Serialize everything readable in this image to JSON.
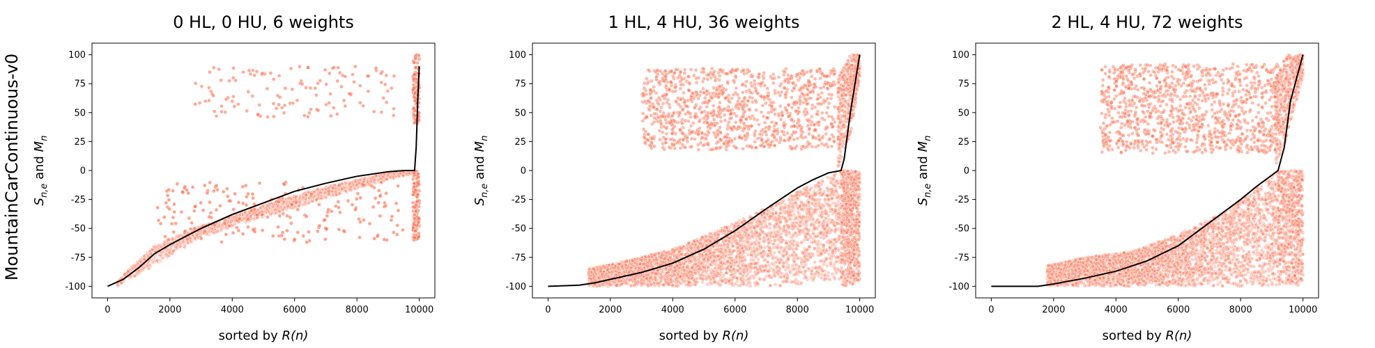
{
  "figure": {
    "row_label": "MountainCarContinuous-v0",
    "colors": {
      "scatter": "#fb6a4a",
      "line": "#000000",
      "axis": "#000000"
    }
  },
  "chart_data": [
    {
      "type": "scatter",
      "title": "0 HL, 0 HU, 6 weights",
      "xlabel_prefix": "sorted by ",
      "xlabel_var": "R(n)",
      "ylabel": "S_{n,e} and M_n",
      "xlim": [
        -500,
        10500
      ],
      "ylim": [
        -110,
        110
      ],
      "xticks": [
        0,
        2000,
        4000,
        6000,
        8000,
        10000
      ],
      "yticks": [
        -100,
        -75,
        -50,
        -25,
        0,
        25,
        50,
        75,
        100
      ],
      "mean_line": {
        "x": [
          0,
          500,
          1000,
          1500,
          2000,
          3000,
          4000,
          5000,
          6000,
          7000,
          8000,
          9000,
          9500,
          9850,
          9900,
          9950,
          10000
        ],
        "y": [
          -100,
          -94,
          -84,
          -72,
          -64,
          -50,
          -38,
          -28,
          -18,
          -11,
          -5,
          -1,
          0,
          0,
          20,
          60,
          90
        ]
      },
      "bands": [
        {
          "x": [
            300,
            1500,
            3000,
            5000,
            7000,
            9000,
            9900
          ],
          "lo": [
            -100,
            -82,
            -58,
            -40,
            -24,
            -8,
            -2
          ],
          "hi": [
            -95,
            -65,
            -48,
            -30,
            -14,
            -2,
            0
          ],
          "n": 1600,
          "opacity": 0.25
        }
      ],
      "clusters": [
        {
          "x": [
            2800,
            9200
          ],
          "y": [
            45,
            90
          ],
          "n": 130,
          "opacity": 0.55
        },
        {
          "x": [
            1500,
            9500
          ],
          "y": [
            -62,
            -10
          ],
          "n": 200,
          "opacity": 0.6
        },
        {
          "x": [
            9800,
            10000
          ],
          "y": [
            -60,
            0
          ],
          "n": 120,
          "opacity": 0.55
        },
        {
          "x": [
            9800,
            10000
          ],
          "y": [
            40,
            100
          ],
          "n": 120,
          "opacity": 0.55
        }
      ]
    },
    {
      "type": "scatter",
      "title": "1 HL, 4 HU, 36 weights",
      "xlabel_prefix": "sorted by ",
      "xlabel_var": "R(n)",
      "ylabel": "S_{n,e} and M_n",
      "xlim": [
        -500,
        10500
      ],
      "ylim": [
        -110,
        110
      ],
      "xticks": [
        0,
        2000,
        4000,
        6000,
        8000,
        10000
      ],
      "yticks": [
        -100,
        -75,
        -50,
        -25,
        0,
        25,
        50,
        75,
        100
      ],
      "mean_line": {
        "x": [
          0,
          1000,
          1500,
          2000,
          3000,
          4000,
          5000,
          6000,
          7000,
          8000,
          8500,
          9000,
          9400,
          9500,
          9700,
          10000
        ],
        "y": [
          -100,
          -99,
          -97,
          -94,
          -88,
          -80,
          -68,
          -52,
          -33,
          -15,
          -8,
          -2,
          0,
          10,
          50,
          100
        ]
      },
      "bands": [
        {
          "x": [
            1300,
            2500,
            4000,
            6000,
            7500,
            9000,
            9400
          ],
          "lo": [
            -100,
            -100,
            -100,
            -100,
            -100,
            -95,
            -95
          ],
          "hi": [
            -85,
            -78,
            -68,
            -45,
            -25,
            -5,
            0
          ],
          "n": 3500,
          "opacity": 0.3
        },
        {
          "x": [
            9400,
            9700,
            10000
          ],
          "lo": [
            -100,
            -100,
            -100
          ],
          "hi": [
            0,
            0,
            0
          ],
          "n": 700,
          "opacity": 0.35
        },
        {
          "x": [
            9300,
            9700,
            10000
          ],
          "lo": [
            0,
            30,
            80
          ],
          "hi": [
            80,
            100,
            100
          ],
          "n": 500,
          "opacity": 0.35
        }
      ],
      "clusters": [
        {
          "x": [
            3000,
            9200
          ],
          "y": [
            18,
            88
          ],
          "n": 1100,
          "opacity": 0.45
        }
      ]
    },
    {
      "type": "scatter",
      "title": "2 HL, 4 HU, 72 weights",
      "xlabel_prefix": "sorted by ",
      "xlabel_var": "R(n)",
      "ylabel": "S_{n,e} and M_n",
      "xlim": [
        -500,
        10500
      ],
      "ylim": [
        -110,
        110
      ],
      "xticks": [
        0,
        2000,
        4000,
        6000,
        8000,
        10000
      ],
      "yticks": [
        -100,
        -75,
        -50,
        -25,
        0,
        25,
        50,
        75,
        100
      ],
      "mean_line": {
        "x": [
          0,
          1000,
          1500,
          2000,
          3000,
          4000,
          5000,
          6000,
          7000,
          8000,
          8500,
          9000,
          9200,
          9400,
          9600,
          10000
        ],
        "y": [
          -100,
          -100,
          -100,
          -98,
          -93,
          -87,
          -78,
          -65,
          -45,
          -25,
          -14,
          -4,
          0,
          20,
          60,
          100
        ]
      },
      "bands": [
        {
          "x": [
            1800,
            3000,
            4500,
            6000,
            7500,
            9000,
            9200
          ],
          "lo": [
            -100,
            -100,
            -100,
            -100,
            -100,
            -100,
            -100
          ],
          "hi": [
            -82,
            -75,
            -70,
            -55,
            -35,
            -5,
            0
          ],
          "n": 3500,
          "opacity": 0.3
        },
        {
          "x": [
            9200,
            9600,
            10000
          ],
          "lo": [
            -100,
            -100,
            -100
          ],
          "hi": [
            0,
            0,
            0
          ],
          "n": 650,
          "opacity": 0.35
        },
        {
          "x": [
            9100,
            9500,
            10000
          ],
          "lo": [
            0,
            30,
            80
          ],
          "hi": [
            80,
            100,
            100
          ],
          "n": 500,
          "opacity": 0.35
        }
      ],
      "clusters": [
        {
          "x": [
            3500,
            9200
          ],
          "y": [
            15,
            92
          ],
          "n": 1100,
          "opacity": 0.45
        }
      ]
    }
  ]
}
